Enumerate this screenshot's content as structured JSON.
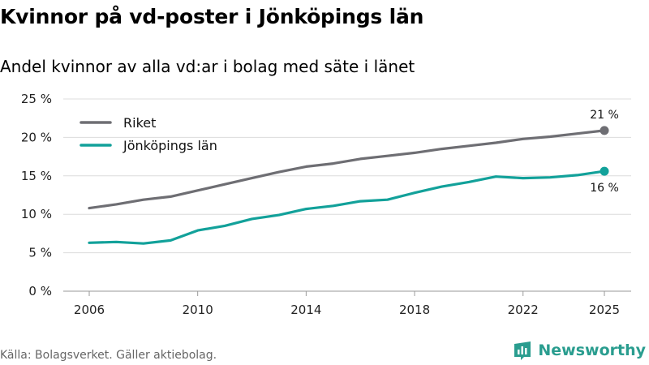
{
  "header": {
    "title": "Kvinnor på vd-poster i Jönköpings län",
    "subtitle": "Andel kvinnor av alla vd:ar i bolag med säte i länet"
  },
  "footer": {
    "source": "Källa: Bolagsverket. Gäller aktiebolag.",
    "brand": "Newsworthy"
  },
  "colors": {
    "riket": "#6e6e73",
    "lan": "#12a19a",
    "brand": "#2a9d8f"
  },
  "icons": {
    "brand_logo": "bar-chart-icon"
  },
  "chart_data": {
    "type": "line",
    "title": "Kvinnor på vd-poster i Jönköpings län",
    "subtitle": "Andel kvinnor av alla vd:ar i bolag med säte i länet",
    "xlabel": "",
    "ylabel": "",
    "x": [
      2006,
      2007,
      2008,
      2009,
      2010,
      2011,
      2012,
      2013,
      2014,
      2015,
      2016,
      2017,
      2018,
      2019,
      2020,
      2021,
      2022,
      2023,
      2024,
      2025
    ],
    "xticks": [
      2006,
      2010,
      2014,
      2018,
      2022,
      2025
    ],
    "xtick_labels": [
      "2006",
      "2010",
      "2014",
      "2018",
      "2022",
      "2025"
    ],
    "xlim": [
      2006,
      2025
    ],
    "ylim": [
      0,
      25
    ],
    "yticks": [
      0,
      5,
      10,
      15,
      20,
      25
    ],
    "ytick_labels": [
      "0 %",
      "5 %",
      "10 %",
      "15 %",
      "20 %",
      "25 %"
    ],
    "grid": true,
    "legend_position": "top-left",
    "series": [
      {
        "name": "Riket",
        "color": "#6e6e73",
        "values": [
          10.8,
          11.3,
          11.9,
          12.3,
          13.1,
          13.9,
          14.7,
          15.5,
          16.2,
          16.6,
          17.2,
          17.6,
          18.0,
          18.5,
          18.9,
          19.3,
          19.8,
          20.1,
          20.5,
          20.9
        ],
        "end_label": "21 %"
      },
      {
        "name": "Jönköpings län",
        "color": "#12a19a",
        "values": [
          6.3,
          6.4,
          6.2,
          6.6,
          7.9,
          8.5,
          9.4,
          9.9,
          10.7,
          11.1,
          11.7,
          11.9,
          12.8,
          13.6,
          14.2,
          14.9,
          14.7,
          14.8,
          15.1,
          15.6
        ],
        "end_label": "16 %"
      }
    ]
  }
}
